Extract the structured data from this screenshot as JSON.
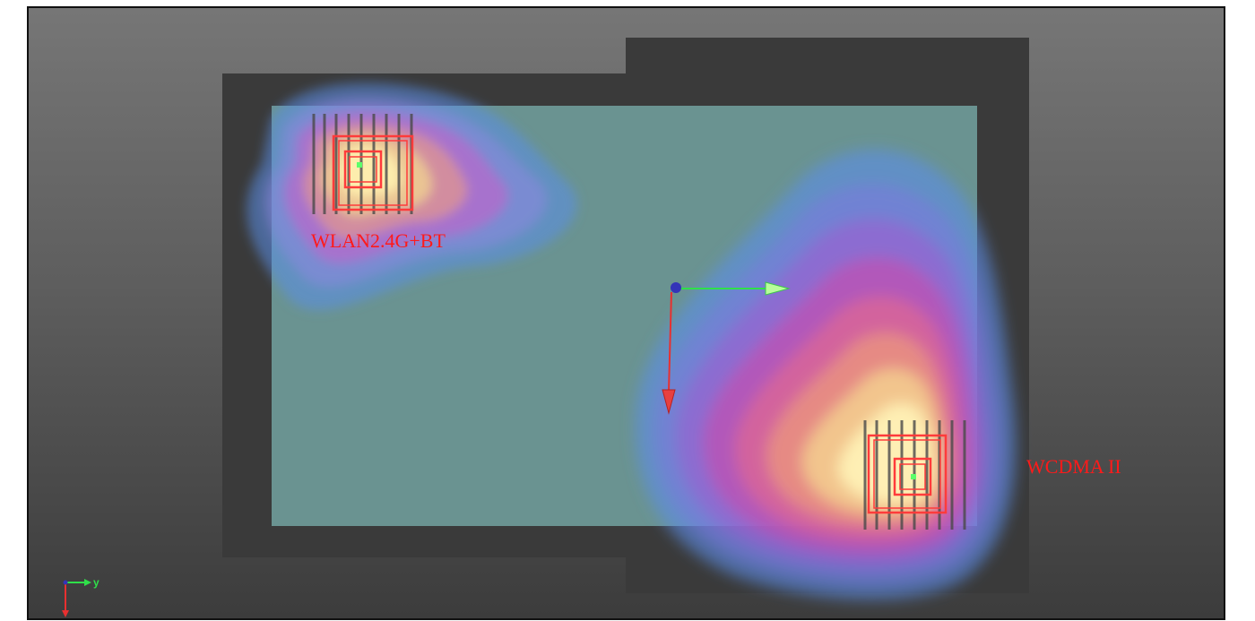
{
  "labels": {
    "antenna_a": "WLAN2.4G+BT",
    "antenna_b": "WCDMA II"
  },
  "axis_triad": {
    "y_label": "y"
  },
  "icons": [
    "coordinate-triad-icon",
    "origin-axes-icon"
  ],
  "colors": {
    "background_top": "#767676",
    "background_bottom": "#3c3c3c",
    "chassis": "#3a3a3a",
    "board": "#6c9492",
    "label": "#ff1a1a",
    "axis_x": "#e83030",
    "axis_y": "#2fe04a",
    "heat_low": "#5a8ee8",
    "heat_mid": "#d45ac8",
    "heat_high": "#ffe890"
  }
}
